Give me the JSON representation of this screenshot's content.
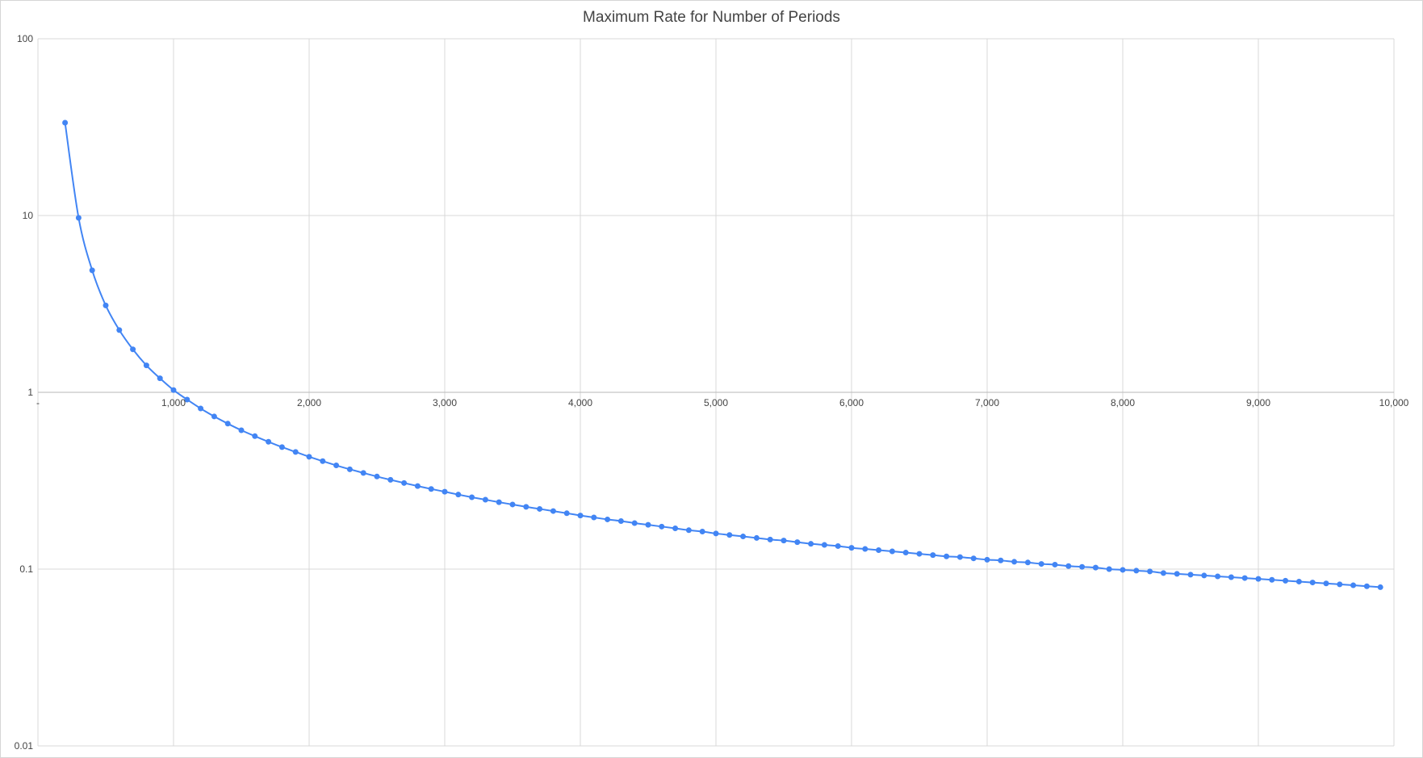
{
  "chart_data": {
    "type": "line",
    "title": "Maximum Rate for Number of Periods",
    "xlabel": "",
    "ylabel": "",
    "x_scale": "linear",
    "y_scale": "log",
    "xlim": [
      0,
      10000
    ],
    "ylim": [
      0.01,
      100
    ],
    "x_ticks": [
      0,
      1000,
      2000,
      3000,
      4000,
      5000,
      6000,
      7000,
      8000,
      9000,
      10000
    ],
    "x_tick_labels": [
      "-",
      "1,000",
      "2,000",
      "3,000",
      "4,000",
      "5,000",
      "6,000",
      "7,000",
      "8,000",
      "9,000",
      "10,000"
    ],
    "y_ticks": [
      0.01,
      0.1,
      1,
      10,
      100
    ],
    "y_tick_labels": [
      "0.01",
      "0.1",
      "1",
      "10",
      "100"
    ],
    "grid": true,
    "legend": "none",
    "markers": true,
    "smooth": true,
    "series": [
      {
        "color": "#4285f4",
        "x": [
          200,
          300,
          400,
          500,
          600,
          700,
          800,
          900,
          1000,
          1100,
          1200,
          1300,
          1400,
          1500,
          1600,
          1700,
          1800,
          1900,
          2000,
          2100,
          2200,
          2300,
          2400,
          2500,
          2600,
          2700,
          2800,
          2900,
          3000,
          3100,
          3200,
          3300,
          3400,
          3500,
          3600,
          3700,
          3800,
          3900,
          4000,
          4100,
          4200,
          4300,
          4400,
          4500,
          4600,
          4700,
          4800,
          4900,
          5000,
          5100,
          5200,
          5300,
          5400,
          5500,
          5600,
          5700,
          5800,
          5900,
          6000,
          6100,
          6200,
          6300,
          6400,
          6500,
          6600,
          6700,
          6800,
          6900,
          7000,
          7100,
          7200,
          7300,
          7400,
          7500,
          7600,
          7700,
          7800,
          7900,
          8000,
          8100,
          8200,
          8300,
          8400,
          8500,
          8600,
          8700,
          8800,
          8900,
          9000,
          9100,
          9200,
          9300,
          9400,
          9500,
          9600,
          9700,
          9800,
          9900
        ],
        "values": [
          33.5,
          9.7,
          4.9,
          3.1,
          2.25,
          1.75,
          1.42,
          1.2,
          1.03,
          0.91,
          0.81,
          0.73,
          0.665,
          0.61,
          0.565,
          0.525,
          0.49,
          0.46,
          0.432,
          0.408,
          0.386,
          0.367,
          0.35,
          0.334,
          0.32,
          0.307,
          0.295,
          0.284,
          0.274,
          0.264,
          0.255,
          0.247,
          0.239,
          0.232,
          0.225,
          0.219,
          0.213,
          0.207,
          0.201,
          0.196,
          0.191,
          0.187,
          0.182,
          0.178,
          0.174,
          0.17,
          0.166,
          0.163,
          0.159,
          0.156,
          0.153,
          0.15,
          0.147,
          0.145,
          0.142,
          0.139,
          0.137,
          0.135,
          0.132,
          0.13,
          0.128,
          0.126,
          0.124,
          0.122,
          0.12,
          0.118,
          0.117,
          0.115,
          0.113,
          0.112,
          0.11,
          0.109,
          0.107,
          0.106,
          0.104,
          0.103,
          0.102,
          0.1,
          0.099,
          0.098,
          0.097,
          0.095,
          0.094,
          0.093,
          0.092,
          0.091,
          0.09,
          0.089,
          0.088,
          0.087,
          0.086,
          0.085,
          0.084,
          0.083,
          0.082,
          0.081,
          0.08,
          0.079
        ]
      }
    ]
  }
}
